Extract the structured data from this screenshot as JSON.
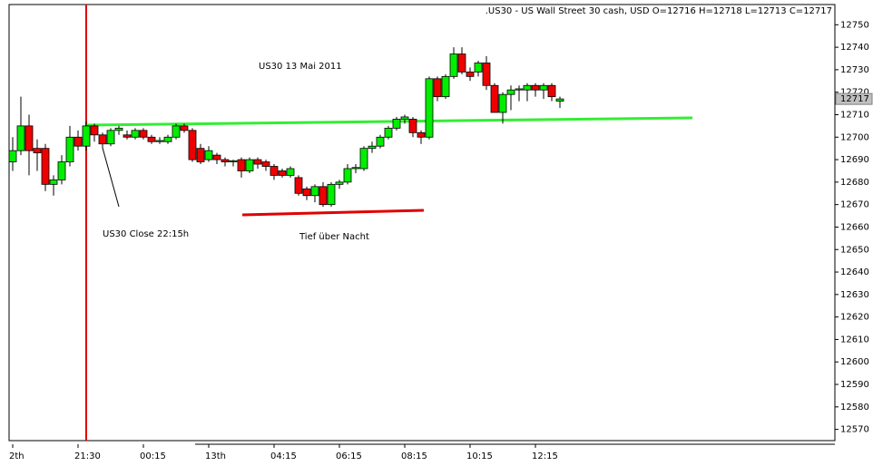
{
  "chart_data": {
    "type": "candlestick",
    "title": ".US30 - US Wall Street 30 cash, USD O=12716 H=12718 L=12713 C=12717",
    "annotations": [
      "US30 13 Mai 2011",
      "US30 Close 22:15h",
      "Tief über Nacht"
    ],
    "last_price": 12717,
    "categories": [
      "2th",
      null,
      null,
      null,
      null,
      null,
      null,
      null,
      "21:30",
      null,
      null,
      null,
      null,
      null,
      null,
      null,
      "00:15",
      null,
      null,
      null,
      null,
      null,
      null,
      null,
      "13th",
      null,
      null,
      null,
      null,
      null,
      null,
      null,
      "04:15",
      null,
      null,
      null,
      null,
      null,
      null,
      null,
      "06:15",
      null,
      null,
      null,
      null,
      null,
      null,
      null,
      "08:15",
      null,
      null,
      null,
      null,
      null,
      null,
      null,
      "10:15",
      null,
      null,
      null,
      null,
      null,
      null,
      null,
      "12:15",
      null,
      null,
      null
    ],
    "open": [
      12689,
      12694,
      12705,
      12695,
      12695,
      12679,
      12681,
      12689,
      12700,
      12696,
      12705,
      12701,
      12697,
      12703,
      12701,
      12700,
      12703,
      12700,
      12698,
      12698,
      12700,
      12705,
      12703,
      12695,
      12690,
      12692,
      12690,
      12689,
      12690,
      12685,
      12690,
      12689,
      12687,
      12685,
      12683,
      12682,
      12677,
      12674,
      12678,
      12670,
      12679,
      12680,
      12686,
      12686,
      12695,
      12696,
      12700,
      12704,
      12708,
      12708,
      12702,
      12700,
      12726,
      12718,
      12727,
      12737,
      12729,
      12729,
      12733,
      12723,
      12711,
      12719,
      12721,
      12721,
      12723,
      12721,
      12723,
      12716
    ],
    "high": [
      12700,
      12718,
      12710,
      12699,
      12697,
      12683,
      12692,
      12705,
      12703,
      12707,
      12706,
      12702,
      12704,
      12705,
      12703,
      12704,
      12704,
      12701,
      12700,
      12701,
      12706,
      12706,
      12704,
      12697,
      12696,
      12693,
      12691,
      12690,
      12691,
      12691,
      12691,
      12690,
      12688,
      12686,
      12687,
      12683,
      12678,
      12679,
      12680,
      12680,
      12681,
      12688,
      12688,
      12696,
      12698,
      12701,
      12705,
      12709,
      12710,
      12709,
      12703,
      12727,
      12727,
      12728,
      12740,
      12740,
      12731,
      12734,
      12736,
      12724,
      12720,
      12723,
      12723,
      12724,
      12724,
      12724,
      12724,
      12718
    ],
    "low": [
      12685,
      12692,
      12683,
      12685,
      12676,
      12674,
      12679,
      12687,
      12694,
      12694,
      12698,
      12695,
      12696,
      12701,
      12699,
      12699,
      12699,
      12697,
      12697,
      12697,
      12699,
      12702,
      12689,
      12688,
      12689,
      12688,
      12687,
      12687,
      12682,
      12684,
      12686,
      12685,
      12681,
      12682,
      12682,
      12674,
      12672,
      12671,
      12669,
      12669,
      12677,
      12679,
      12684,
      12685,
      12693,
      12695,
      12699,
      12703,
      12706,
      12700,
      12697,
      12699,
      12716,
      12717,
      12726,
      12728,
      12725,
      12727,
      12721,
      12711,
      12706,
      12712,
      12716,
      12716,
      12718,
      12717,
      12716,
      12713
    ],
    "close": [
      12694,
      12705,
      12694,
      12693,
      12679,
      12681,
      12689,
      12700,
      12696,
      12705,
      12701,
      12697,
      12703,
      12704,
      12700,
      12703,
      12700,
      12698,
      12698.5,
      12700,
      12705,
      12703,
      12690,
      12689,
      12694,
      12690,
      12689,
      12689.5,
      12685,
      12690,
      12688,
      12687,
      12683,
      12683,
      12686,
      12675,
      12674,
      12678,
      12670,
      12679,
      12680,
      12686,
      12686.5,
      12695,
      12696,
      12700,
      12704,
      12708,
      12709,
      12702,
      12700,
      12726,
      12718,
      12727,
      12737,
      12729,
      12727,
      12733,
      12723,
      12711,
      12719,
      12721,
      12721.5,
      12723,
      12721,
      12723,
      12718,
      12717
    ],
    "up_color": "#00ee00",
    "down_color": "#ee0000",
    "ylim": [
      12565,
      12759
    ],
    "yticks": [
      12570,
      12580,
      12590,
      12600,
      12610,
      12620,
      12630,
      12640,
      12650,
      12660,
      12670,
      12680,
      12690,
      12700,
      12710,
      12720,
      12730,
      12740,
      12750
    ]
  }
}
